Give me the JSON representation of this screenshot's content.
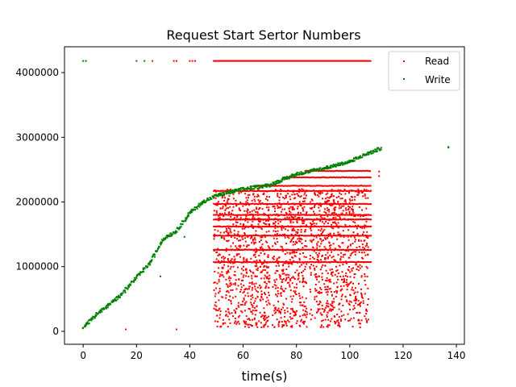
{
  "chart_data": {
    "type": "scatter",
    "title": "Request Start Sertor Numbers",
    "xlabel": "time(s)",
    "ylabel": "",
    "xlim": [
      -7,
      143
    ],
    "ylim": [
      -200000,
      4400000
    ],
    "xticks": [
      0,
      20,
      40,
      60,
      80,
      100,
      120,
      140
    ],
    "yticks": [
      0,
      1000000,
      2000000,
      3000000,
      4000000
    ],
    "xtick_labels": [
      "0",
      "20",
      "40",
      "60",
      "80",
      "100",
      "120",
      "140"
    ],
    "ytick_labels": [
      "0",
      "1000000",
      "2000000",
      "3000000",
      "4000000"
    ],
    "grid": false,
    "legend_position": "top-right",
    "series": [
      {
        "name": "Read",
        "color": "#ff0000",
        "description_points": {
          "top_line": {
            "y": 4180000,
            "x_ranges": [
              [
                49,
                108
              ]
            ],
            "extra_x": [
              26,
              34,
              35,
              40,
              41,
              42
            ]
          },
          "bands_y": [
            1070000,
            1260000,
            1480000,
            1620000,
            1730000,
            1800000,
            1970000,
            2170000,
            2250000,
            2380000,
            2480000
          ],
          "band_x_range": [
            49,
            108
          ],
          "scatter_x_range": [
            49,
            107
          ],
          "scatter_y_range": [
            60000,
            2200000
          ],
          "isolated": [
            [
              16,
              30000
            ],
            [
              35,
              30000
            ],
            [
              111,
              2400000
            ],
            [
              111,
              2470000
            ]
          ]
        }
      },
      {
        "name": "Write",
        "color": "#008000",
        "trend": [
          [
            0,
            70000
          ],
          [
            5,
            260000
          ],
          [
            10,
            420000
          ],
          [
            15,
            600000
          ],
          [
            20,
            830000
          ],
          [
            25,
            1050000
          ],
          [
            30,
            1430000
          ],
          [
            35,
            1550000
          ],
          [
            40,
            1830000
          ],
          [
            45,
            2000000
          ],
          [
            50,
            2100000
          ],
          [
            55,
            2150000
          ],
          [
            60,
            2200000
          ],
          [
            70,
            2260000
          ],
          [
            80,
            2430000
          ],
          [
            90,
            2520000
          ],
          [
            100,
            2620000
          ],
          [
            105,
            2720000
          ],
          [
            110,
            2800000
          ],
          [
            112,
            2840000
          ]
        ],
        "top_points": [
          [
            0,
            4180000
          ],
          [
            1,
            4180000
          ],
          [
            20,
            4180000
          ],
          [
            23,
            4180000
          ]
        ],
        "isolated": [
          [
            137,
            2850000
          ],
          [
            137,
            2840000
          ],
          [
            29,
            850000
          ],
          [
            38,
            1460000
          ],
          [
            52,
            1450000
          ]
        ]
      }
    ]
  }
}
